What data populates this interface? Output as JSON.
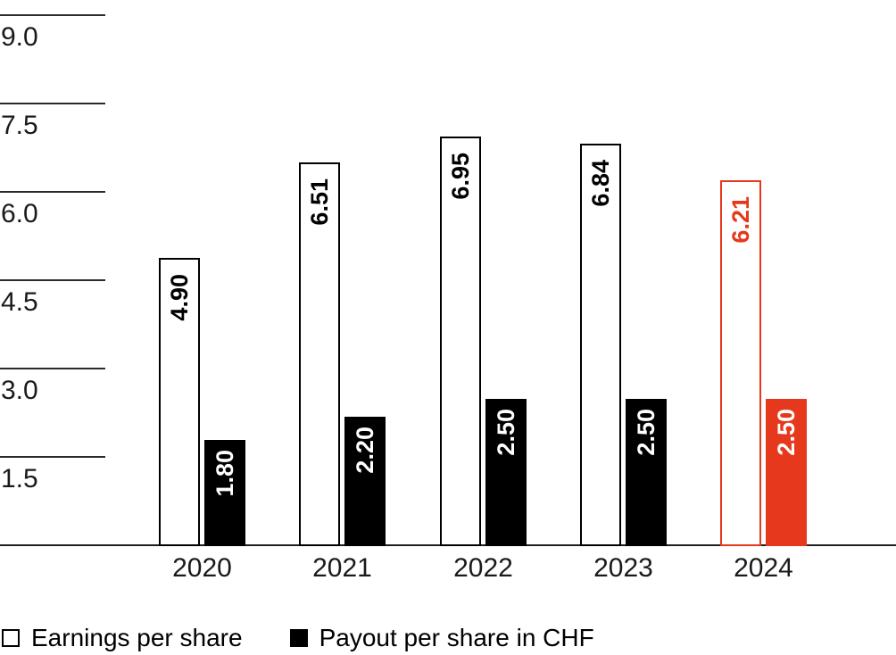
{
  "colors": {
    "accent_red": "#e5381c",
    "bar_black": "#000000",
    "text": "#1a1a1a",
    "axis": "#1f1f1f",
    "background": "#ffffff"
  },
  "chart_data": {
    "type": "bar",
    "title": "",
    "categories": [
      "2020",
      "2021",
      "2022",
      "2023",
      "2024"
    ],
    "series": [
      {
        "name": "Earnings per share",
        "style": "outline",
        "values": [
          4.9,
          6.51,
          6.95,
          6.84,
          6.21
        ],
        "labels": [
          "4.90",
          "6.51",
          "6.95",
          "6.84",
          "6.21"
        ]
      },
      {
        "name": "Payout per share in CHF",
        "style": "filled",
        "values": [
          1.8,
          2.2,
          2.5,
          2.5,
          2.5
        ],
        "labels": [
          "1.80",
          "2.20",
          "2.50",
          "2.50",
          "2.50"
        ]
      }
    ],
    "unit": "CHF",
    "highlight_category": "2024",
    "ytick_labels": [
      "1.5",
      "3.0",
      "4.5",
      "6.0",
      "7.5",
      "9.0"
    ],
    "ytick_values": [
      1.5,
      3.0,
      4.5,
      6.0,
      7.5,
      9.0
    ],
    "ylim": [
      0,
      9.9
    ],
    "grid": "horizontal-tick-segments-left-only",
    "value_label_rotation": -90,
    "legend_position": "bottom-left"
  },
  "legend": {
    "items": [
      {
        "label": "Earnings per share",
        "swatch": "outline"
      },
      {
        "label": "Payout per share in CHF",
        "swatch": "filled"
      }
    ]
  }
}
